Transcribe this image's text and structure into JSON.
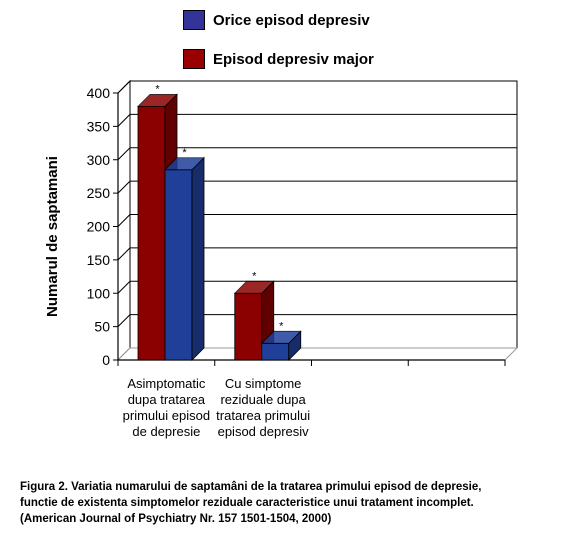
{
  "chart_data": {
    "type": "bar",
    "ylabel": "Numarul de saptamani",
    "ylim": [
      0,
      400
    ],
    "yticks": [
      0,
      50,
      100,
      150,
      200,
      250,
      300,
      350,
      400
    ],
    "categories": [
      [
        "Asimptomatic",
        "dupa tratarea",
        "primului episod",
        "de depresie"
      ],
      [
        "Cu simptome",
        "reziduale dupa",
        "tratarea primului",
        "episod depresiv"
      ],
      [],
      []
    ],
    "series": [
      {
        "name": "Episod depresiv major",
        "color": "#8B0000",
        "values": [
          380,
          100,
          null,
          null
        ],
        "markers": [
          "*",
          "*",
          null,
          null
        ]
      },
      {
        "name": "Orice episod depresiv",
        "color": "#1F3F99",
        "values": [
          285,
          25,
          null,
          null
        ],
        "markers": [
          "*",
          "*",
          null,
          null
        ]
      }
    ],
    "legend": {
      "position": "top",
      "items": [
        {
          "label": "Orice episod depresiv",
          "color": "#333399"
        },
        {
          "label": "Episod depresiv major",
          "color": "#990000"
        }
      ]
    },
    "grid": true
  },
  "caption": [
    "Figura 2. Variatia numarului de saptamâni de la tratarea primului episod de depresie,",
    "functie de existenta simptomelor reziduale caracteristice unui tratament incomplet.",
    "(American Journal of Psychiatry Nr. 157 1501-1504, 2000)"
  ]
}
